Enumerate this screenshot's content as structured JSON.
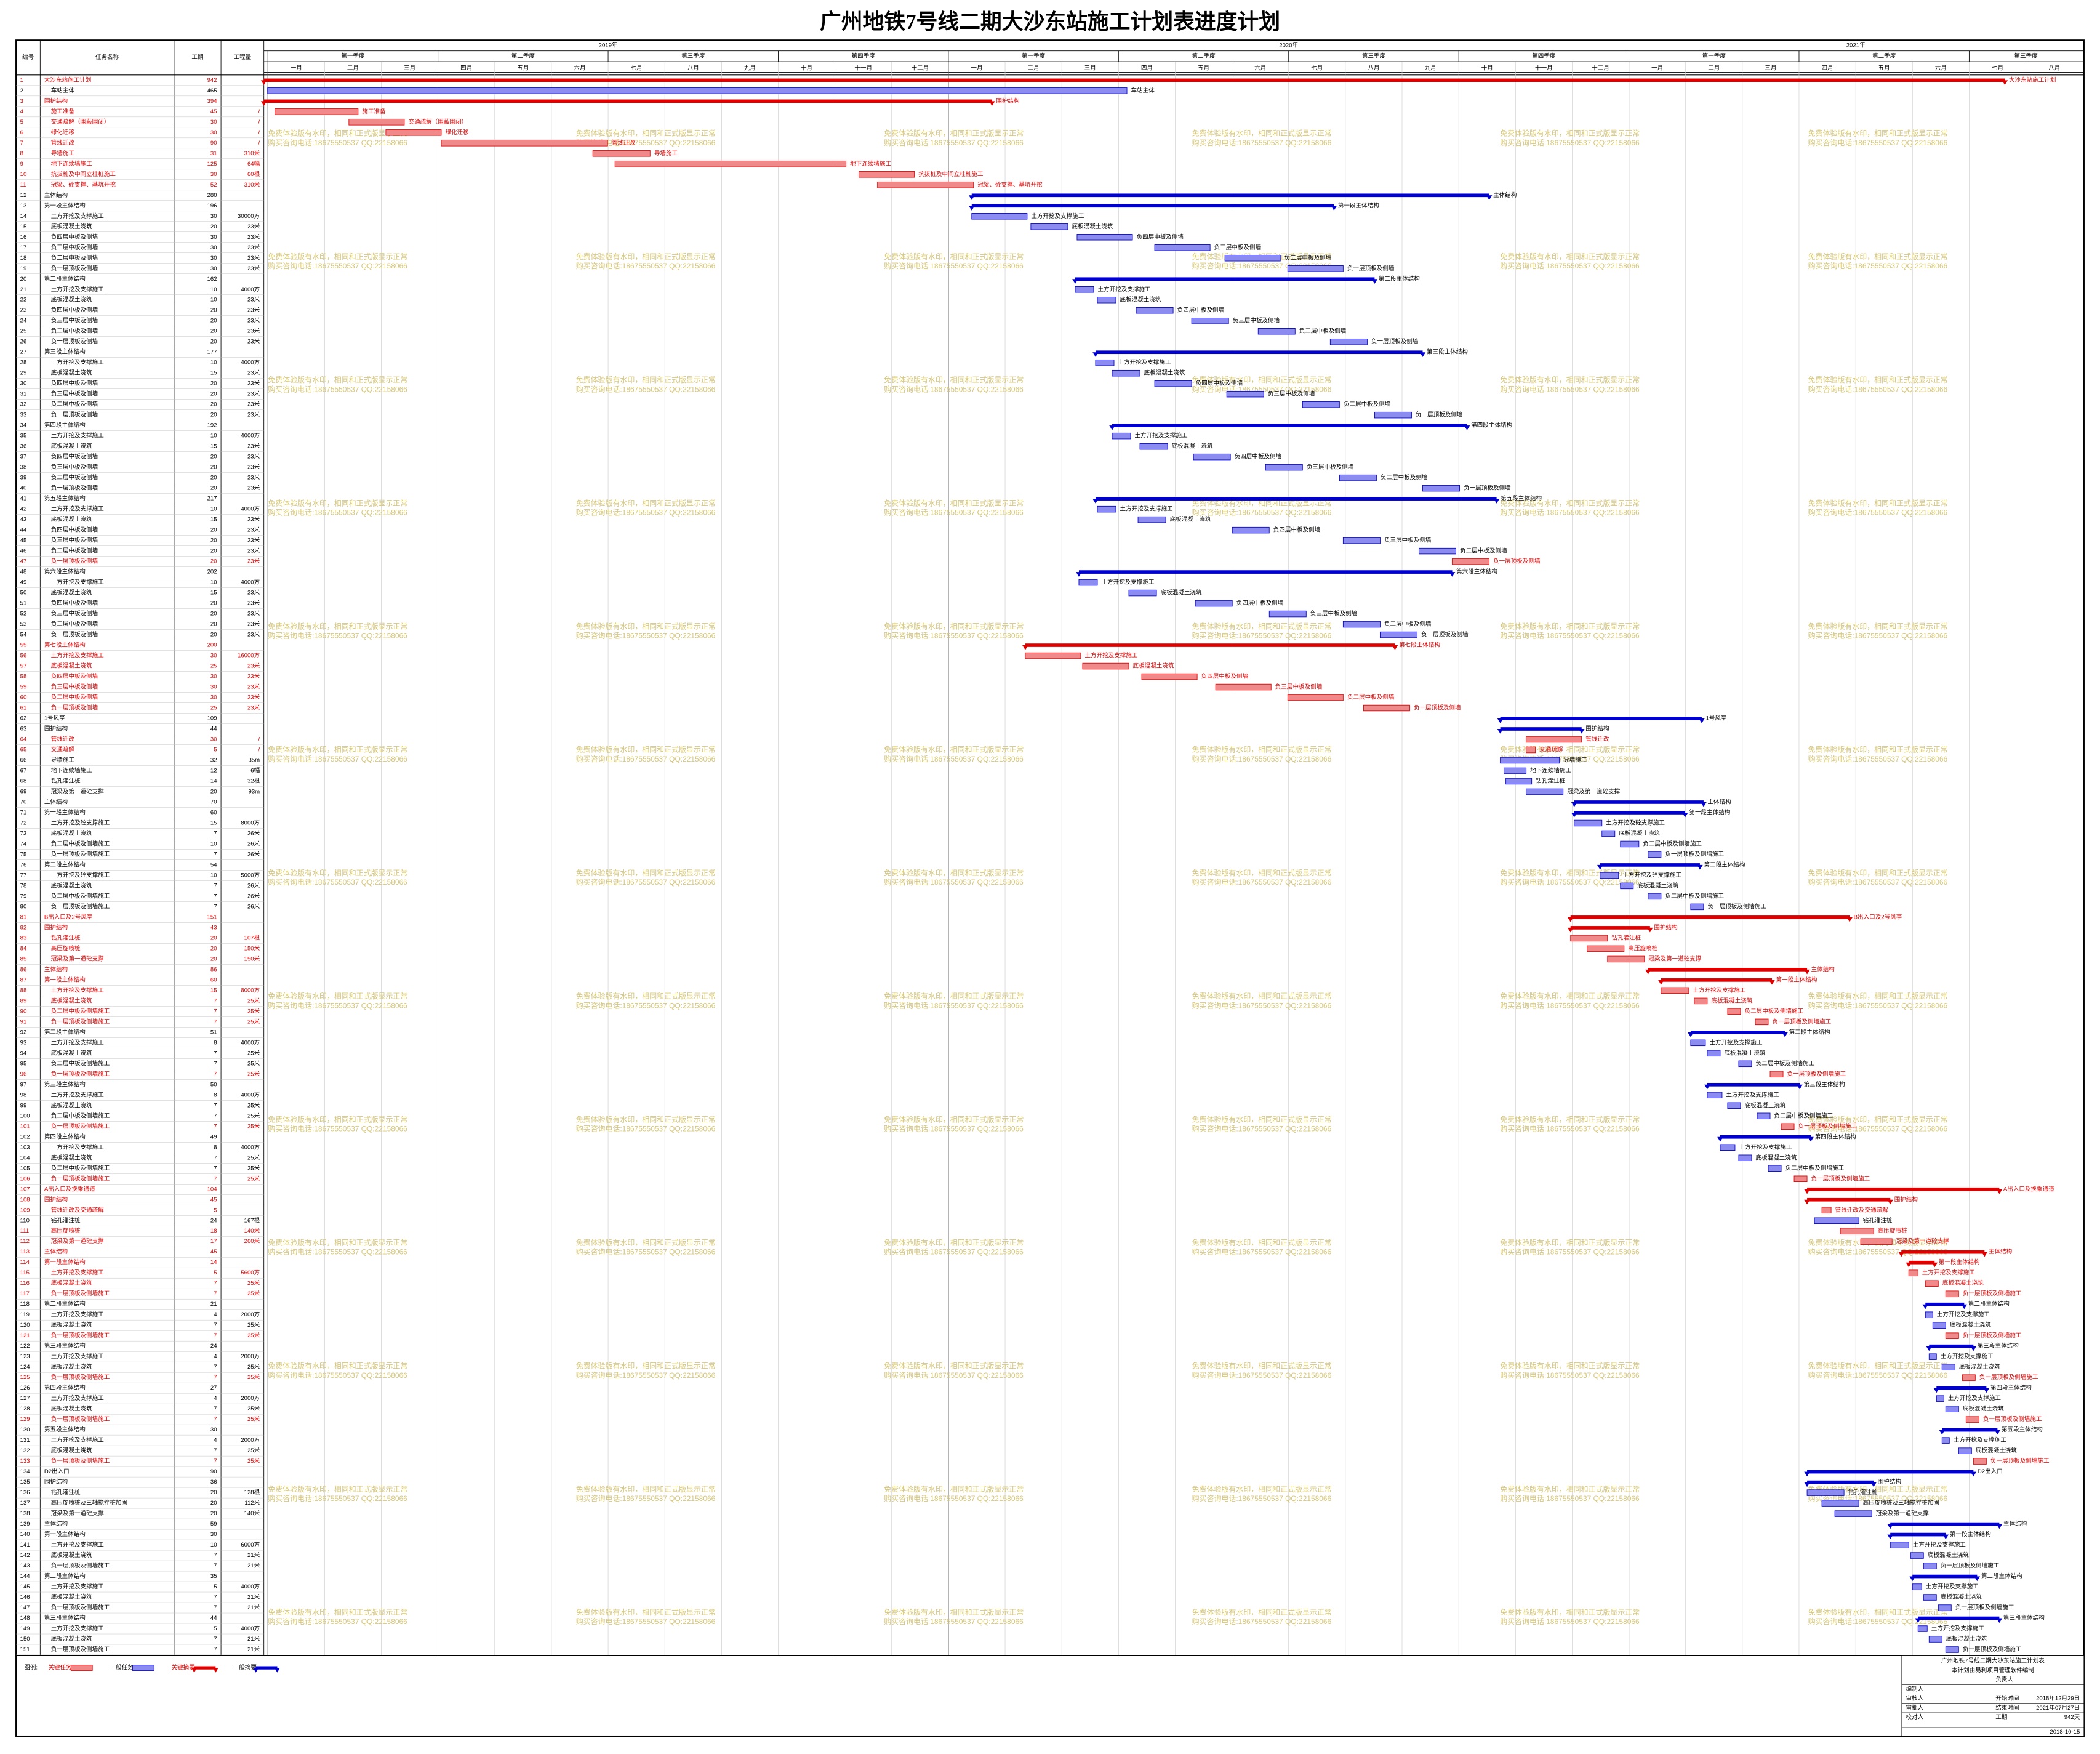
{
  "title": "广州地铁7号线二期大沙东站施工计划表进度计划",
  "columns": [
    "编号",
    "任务名称",
    "工期",
    "工程量"
  ],
  "years": [
    "2019年",
    "2020年",
    "2021年"
  ],
  "quarters": [
    "第一季度",
    "第二季度",
    "第三季度",
    "第四季度",
    "第一季度",
    "第二季度",
    "第三季度",
    "第四季度",
    "第一季度",
    "第二季度",
    "第三季度"
  ],
  "months": [
    "一月",
    "二月",
    "三月",
    "四月",
    "五月",
    "六月",
    "七月",
    "八月",
    "九月",
    "十月",
    "十一月",
    "十二月",
    "一月",
    "二月",
    "三月",
    "四月",
    "五月",
    "六月",
    "七月",
    "八月",
    "九月",
    "十月",
    "十一月",
    "十二月",
    "一月",
    "二月",
    "三月",
    "四月",
    "五月",
    "六月",
    "七月",
    "八月"
  ],
  "watermark": [
    "免费体验版有水印，相同和正式版显示正常",
    "购买咨询电话:18675550537 QQ:22158066"
  ],
  "tasks": {
    "rows": [
      [
        1,
        "大沙东站施工计划",
        942,
        null,
        0,
        "rs"
      ],
      [
        2,
        "车站主体",
        465,
        null,
        2,
        "n"
      ],
      [
        3,
        "围护结构",
        394,
        null,
        0,
        "rs"
      ],
      [
        4,
        "施工准备",
        45,
        "/",
        6,
        "c"
      ],
      [
        5,
        "交通疏解（围蔽围闭）",
        30,
        "/",
        46,
        "c"
      ],
      [
        6,
        "绿化迁移",
        30,
        "/",
        66,
        "c"
      ],
      [
        7,
        "管线迁改",
        90,
        "/",
        96,
        "c"
      ],
      [
        8,
        "导墙施工",
        31,
        "310米",
        178,
        "c"
      ],
      [
        9,
        "地下连续墙施工",
        125,
        "64幅",
        190,
        "c"
      ],
      [
        10,
        "抗拔桩及中间立柱桩施工",
        30,
        "60根",
        322,
        "c"
      ],
      [
        11,
        "冠梁、砼支撑、基坑开挖",
        52,
        "310米",
        332,
        "c"
      ],
      [
        12,
        "主体结构",
        280,
        null,
        383,
        "s"
      ],
      [
        13,
        "第一段主体结构",
        196,
        null,
        383,
        "s"
      ],
      [
        14,
        "土方开挖及支撑施工",
        30,
        "30000方",
        383,
        "n"
      ],
      [
        15,
        "底板混凝土浇筑",
        20,
        "23米",
        415,
        "n"
      ],
      [
        16,
        "负四层中板及侧墙",
        30,
        "23米",
        440,
        "n"
      ],
      [
        17,
        "负三层中板及侧墙",
        30,
        "23米",
        482,
        "n"
      ],
      [
        18,
        "负二层中板及侧墙",
        30,
        "23米",
        520,
        "n"
      ],
      [
        19,
        "负一层顶板及侧墙",
        30,
        "23米",
        554,
        "n"
      ],
      [
        20,
        "第二段主体结构",
        162,
        null,
        439,
        "s"
      ],
      [
        21,
        "土方开挖及支撑施工",
        10,
        "4000方",
        439,
        "n"
      ],
      [
        22,
        "底板混凝土浇筑",
        10,
        "23米",
        451,
        "n"
      ],
      [
        23,
        "负四层中板及侧墙",
        20,
        "23米",
        472,
        "n"
      ],
      [
        24,
        "负三层中板及侧墙",
        20,
        "23米",
        502,
        "n"
      ],
      [
        25,
        "负二层中板及侧墙",
        20,
        "23米",
        538,
        "n"
      ],
      [
        26,
        "负一层顶板及侧墙",
        20,
        "23米",
        577,
        "n"
      ],
      [
        27,
        "第三段主体结构",
        177,
        null,
        450,
        "s"
      ],
      [
        28,
        "土方开挖及支撑施工",
        10,
        "4000方",
        450,
        "n"
      ],
      [
        29,
        "底板混凝土浇筑",
        15,
        "23米",
        459,
        "n"
      ],
      [
        30,
        "负四层中板及侧墙",
        20,
        "23米",
        482,
        "n"
      ],
      [
        31,
        "负三层中板及侧墙",
        20,
        "23米",
        521,
        "n"
      ],
      [
        32,
        "负二层中板及侧墙",
        20,
        "23米",
        562,
        "n"
      ],
      [
        33,
        "负一层顶板及侧墙",
        20,
        "23米",
        601,
        "n"
      ],
      [
        34,
        "第四段主体结构",
        192,
        null,
        459,
        "s"
      ],
      [
        35,
        "土方开挖及支撑施工",
        10,
        "4000方",
        459,
        "n"
      ],
      [
        36,
        "底板混凝土浇筑",
        15,
        "23米",
        474,
        "n"
      ],
      [
        37,
        "负四层中板及侧墙",
        20,
        "23米",
        503,
        "n"
      ],
      [
        38,
        "负三层中板及侧墙",
        20,
        "23米",
        542,
        "n"
      ],
      [
        39,
        "负二层中板及侧墙",
        20,
        "23米",
        582,
        "n"
      ],
      [
        40,
        "负一层顶板及侧墙",
        20,
        "23米",
        627,
        "n"
      ],
      [
        41,
        "第五段主体结构",
        217,
        null,
        450,
        "s"
      ],
      [
        42,
        "土方开挖及支撑施工",
        10,
        "4000方",
        451,
        "n"
      ],
      [
        43,
        "底板混凝土浇筑",
        15,
        "23米",
        473,
        "n"
      ],
      [
        44,
        "负四层中板及侧墙",
        20,
        "23米",
        524,
        "n"
      ],
      [
        45,
        "负三层中板及侧墙",
        20,
        "23米",
        584,
        "n"
      ],
      [
        46,
        "负二层中板及侧墙",
        20,
        "23米",
        625,
        "n"
      ],
      [
        47,
        "负一层顶板及侧墙",
        20,
        "23米",
        643,
        "c"
      ],
      [
        48,
        "第六段主体结构",
        202,
        null,
        441,
        "s"
      ],
      [
        49,
        "土方开挖及支撑施工",
        10,
        "4000方",
        441,
        "n"
      ],
      [
        50,
        "底板混凝土浇筑",
        15,
        "23米",
        468,
        "n"
      ],
      [
        51,
        "负四层中板及侧墙",
        20,
        "23米",
        504,
        "n"
      ],
      [
        52,
        "负三层中板及侧墙",
        20,
        "23米",
        544,
        "n"
      ],
      [
        53,
        "负二层中板及侧墙",
        20,
        "23米",
        584,
        "n"
      ],
      [
        54,
        "负一层顶板及侧墙",
        20,
        "23米",
        604,
        "n"
      ],
      [
        55,
        "第七段主体结构",
        200,
        null,
        412,
        "rs"
      ],
      [
        56,
        "土方开挖及支撑施工",
        30,
        "16000方",
        412,
        "c"
      ],
      [
        57,
        "底板混凝土浇筑",
        25,
        "23米",
        443,
        "c"
      ],
      [
        58,
        "负四层中板及侧墙",
        30,
        "23米",
        475,
        "c"
      ],
      [
        59,
        "负三层中板及侧墙",
        30,
        "23米",
        515,
        "c"
      ],
      [
        60,
        "负二层中板及侧墙",
        30,
        "23米",
        554,
        "c"
      ],
      [
        61,
        "负一层顶板及侧墙",
        25,
        "23米",
        595,
        "c"
      ],
      [
        62,
        "1号风亭",
        109,
        null,
        669,
        "s"
      ],
      [
        63,
        "围护结构",
        44,
        null,
        669,
        "s"
      ],
      [
        64,
        "管线迁改",
        30,
        "/",
        683,
        "c"
      ],
      [
        65,
        "交通疏解",
        5,
        "/",
        683,
        "c"
      ],
      [
        66,
        "导墙施工",
        32,
        "35m",
        669,
        "n"
      ],
      [
        67,
        "地下连续墙施工",
        12,
        "6幅",
        671,
        "n"
      ],
      [
        68,
        "钻孔灌注桩",
        14,
        "32根",
        672,
        "n"
      ],
      [
        69,
        "冠梁及第一道砼支撑",
        20,
        "93m",
        683,
        "n"
      ],
      [
        70,
        "主体结构",
        70,
        null,
        709,
        "s"
      ],
      [
        71,
        "第一段主体结构",
        60,
        null,
        709,
        "s"
      ],
      [
        72,
        "土方开挖及砼支撑施工",
        15,
        "8000方",
        709,
        "n"
      ],
      [
        73,
        "底板混凝土浇筑",
        7,
        "26米",
        724,
        "n"
      ],
      [
        74,
        "负二层中板及侧墙施工",
        10,
        "26米",
        734,
        "n"
      ],
      [
        75,
        "负一层顶板及侧墙施工",
        7,
        "26米",
        749,
        "n"
      ],
      [
        76,
        "第二段主体结构",
        54,
        null,
        723,
        "s"
      ],
      [
        77,
        "土方开挖及砼支撑施工",
        10,
        "5000方",
        723,
        "n"
      ],
      [
        78,
        "底板混凝土浇筑",
        7,
        "26米",
        734,
        "n"
      ],
      [
        79,
        "负二层中板及侧墙施工",
        7,
        "26米",
        749,
        "n"
      ],
      [
        80,
        "负一层顶板及侧墙施工",
        7,
        "26米",
        772,
        "n"
      ],
      [
        81,
        "B出入口及2号风亭",
        151,
        null,
        707,
        "rs"
      ],
      [
        82,
        "围护结构",
        43,
        null,
        707,
        "rs"
      ],
      [
        83,
        "钻孔灌注桩",
        20,
        "107根",
        707,
        "c"
      ],
      [
        84,
        "高压旋喷桩",
        20,
        "150米",
        716,
        "c"
      ],
      [
        85,
        "冠梁及第一道砼支撑",
        20,
        "150米",
        727,
        "c"
      ],
      [
        86,
        "主体结构",
        86,
        null,
        749,
        "rs"
      ],
      [
        87,
        "第一段主体结构",
        60,
        null,
        756,
        "rs"
      ],
      [
        88,
        "土方开挖及支撑施工",
        15,
        "8000方",
        756,
        "c"
      ],
      [
        89,
        "底板混凝土浇筑",
        7,
        "25米",
        774,
        "c"
      ],
      [
        90,
        "负二层中板及侧墙施工",
        7,
        "25米",
        792,
        "c"
      ],
      [
        91,
        "负一层顶板及侧墙施工",
        7,
        "25米",
        807,
        "c"
      ],
      [
        92,
        "第二段主体结构",
        51,
        null,
        772,
        "s"
      ],
      [
        93,
        "土方开挖及支撑施工",
        8,
        "4000方",
        772,
        "n"
      ],
      [
        94,
        "底板混凝土浇筑",
        7,
        "25米",
        781,
        "n"
      ],
      [
        95,
        "负二层中板及侧墙施工",
        7,
        "25米",
        798,
        "n"
      ],
      [
        96,
        "负一层顶板及侧墙施工",
        7,
        "25米",
        815,
        "c"
      ],
      [
        97,
        "第三段主体结构",
        50,
        null,
        781,
        "s"
      ],
      [
        98,
        "土方开挖及支撑施工",
        8,
        "4000方",
        781,
        "n"
      ],
      [
        99,
        "底板混凝土浇筑",
        7,
        "25米",
        792,
        "n"
      ],
      [
        100,
        "负二层中板及侧墙施工",
        7,
        "25米",
        808,
        "n"
      ],
      [
        101,
        "负一层顶板及侧墙施工",
        7,
        "25米",
        821,
        "c"
      ],
      [
        102,
        "第四段主体结构",
        49,
        null,
        788,
        "s"
      ],
      [
        103,
        "土方开挖及支撑施工",
        8,
        "4000方",
        788,
        "n"
      ],
      [
        104,
        "底板混凝土浇筑",
        7,
        "25米",
        798,
        "n"
      ],
      [
        105,
        "负二层中板及侧墙施工",
        7,
        "25米",
        814,
        "n"
      ],
      [
        106,
        "负一层顶板及侧墙施工",
        7,
        "25米",
        828,
        "c"
      ],
      [
        107,
        "A出入口及换乘通道",
        104,
        null,
        835,
        "rs"
      ],
      [
        108,
        "围护结构",
        45,
        null,
        835,
        "rs"
      ],
      [
        109,
        "管线迁改及交通疏解",
        5,
        null,
        843,
        "c"
      ],
      [
        110,
        "钻孔灌注桩",
        24,
        "167根",
        839,
        "n"
      ],
      [
        111,
        "高压旋喷桩",
        18,
        "140米",
        853,
        "c"
      ],
      [
        112,
        "冠梁及第一道砼支撑",
        17,
        "260米",
        864,
        "c"
      ],
      [
        113,
        "主体结构",
        45,
        null,
        886,
        "rs"
      ],
      [
        114,
        "第一段主体结构",
        14,
        null,
        890,
        "rs"
      ],
      [
        115,
        "土方开挖及支撑施工",
        5,
        "5600方",
        890,
        "c"
      ],
      [
        116,
        "底板混凝土浇筑",
        7,
        "25米",
        899,
        "c"
      ],
      [
        117,
        "负一层顶板及侧墙施工",
        7,
        "25米",
        910,
        "c"
      ],
      [
        118,
        "第二段主体结构",
        21,
        null,
        899,
        "s"
      ],
      [
        119,
        "土方开挖及支撑施工",
        4,
        "2000方",
        899,
        "n"
      ],
      [
        120,
        "底板混凝土浇筑",
        7,
        "25米",
        903,
        "n"
      ],
      [
        121,
        "负一层顶板及侧墙施工",
        7,
        "25米",
        910,
        "c"
      ],
      [
        122,
        "第三段主体结构",
        24,
        null,
        901,
        "s"
      ],
      [
        123,
        "土方开挖及支撑施工",
        4,
        "2000方",
        901,
        "n"
      ],
      [
        124,
        "底板混凝土浇筑",
        7,
        "25米",
        908,
        "n"
      ],
      [
        125,
        "负一层顶板及侧墙施工",
        7,
        "25米",
        919,
        "c"
      ],
      [
        126,
        "第四段主体结构",
        27,
        null,
        905,
        "s"
      ],
      [
        127,
        "土方开挖及支撑施工",
        4,
        "2000方",
        905,
        "n"
      ],
      [
        128,
        "底板混凝土浇筑",
        7,
        "25米",
        910,
        "n"
      ],
      [
        129,
        "负一层顶板及侧墙施工",
        7,
        "25米",
        921,
        "c"
      ],
      [
        130,
        "第五段主体结构",
        30,
        null,
        908,
        "s"
      ],
      [
        131,
        "土方开挖及支撑施工",
        4,
        "2000方",
        908,
        "n"
      ],
      [
        132,
        "底板混凝土浇筑",
        7,
        "25米",
        917,
        "n"
      ],
      [
        133,
        "负一层顶板及侧墙施工",
        7,
        "25米",
        925,
        "c"
      ],
      [
        134,
        "D2出入口",
        90,
        null,
        835,
        "s"
      ],
      [
        135,
        "围护结构",
        36,
        null,
        835,
        "s"
      ],
      [
        136,
        "钻孔灌注桩",
        20,
        "128根",
        835,
        "n"
      ],
      [
        137,
        "高压旋喷桩及三轴搅拌桩加固",
        20,
        "112米",
        843,
        "n"
      ],
      [
        138,
        "冠梁及第一道砼支撑",
        20,
        "140米",
        850,
        "n"
      ],
      [
        139,
        "主体结构",
        59,
        null,
        880,
        "s"
      ],
      [
        140,
        "第一段主体结构",
        30,
        null,
        880,
        "s"
      ],
      [
        141,
        "土方开挖及支撑施工",
        10,
        "6000方",
        880,
        "n"
      ],
      [
        142,
        "底板混凝土浇筑",
        7,
        "21米",
        891,
        "n"
      ],
      [
        143,
        "负一层顶板及侧墙施工",
        7,
        "21米",
        898,
        "n"
      ],
      [
        144,
        "第二段主体结构",
        35,
        null,
        892,
        "s"
      ],
      [
        145,
        "土方开挖及支撑施工",
        5,
        "4000方",
        892,
        "n"
      ],
      [
        146,
        "底板混凝土浇筑",
        7,
        "21米",
        898,
        "n"
      ],
      [
        147,
        "负一层顶板及侧墙施工",
        7,
        "21米",
        906,
        "n"
      ],
      [
        148,
        "第三段主体结构",
        44,
        null,
        895,
        "s"
      ],
      [
        149,
        "土方开挖及支撑施工",
        5,
        "4000方",
        895,
        "n"
      ],
      [
        150,
        "底板混凝土浇筑",
        7,
        "21米",
        901,
        "n"
      ],
      [
        151,
        "负一层顶板及侧墙施工",
        7,
        "21米",
        910,
        "n"
      ]
    ]
  },
  "legend": {
    "label": "图例:",
    "items": [
      "关键任务",
      "一般任务",
      "关键摘要",
      "一般摘要"
    ]
  },
  "info": {
    "title": "广州地铁7号线二期大沙东站施工计划表",
    "subtitle": "本计划由易利项目管理软件编制",
    "manager": "负责人",
    "fields": [
      [
        "编制人"
      ],
      [
        "审核人",
        "开始时间",
        "2018年12月29日"
      ],
      [
        "审批人",
        "结束时间",
        "2021年07月27日"
      ],
      [
        "校对人",
        "工期",
        "942天"
      ]
    ],
    "date": "2018-10-15"
  }
}
